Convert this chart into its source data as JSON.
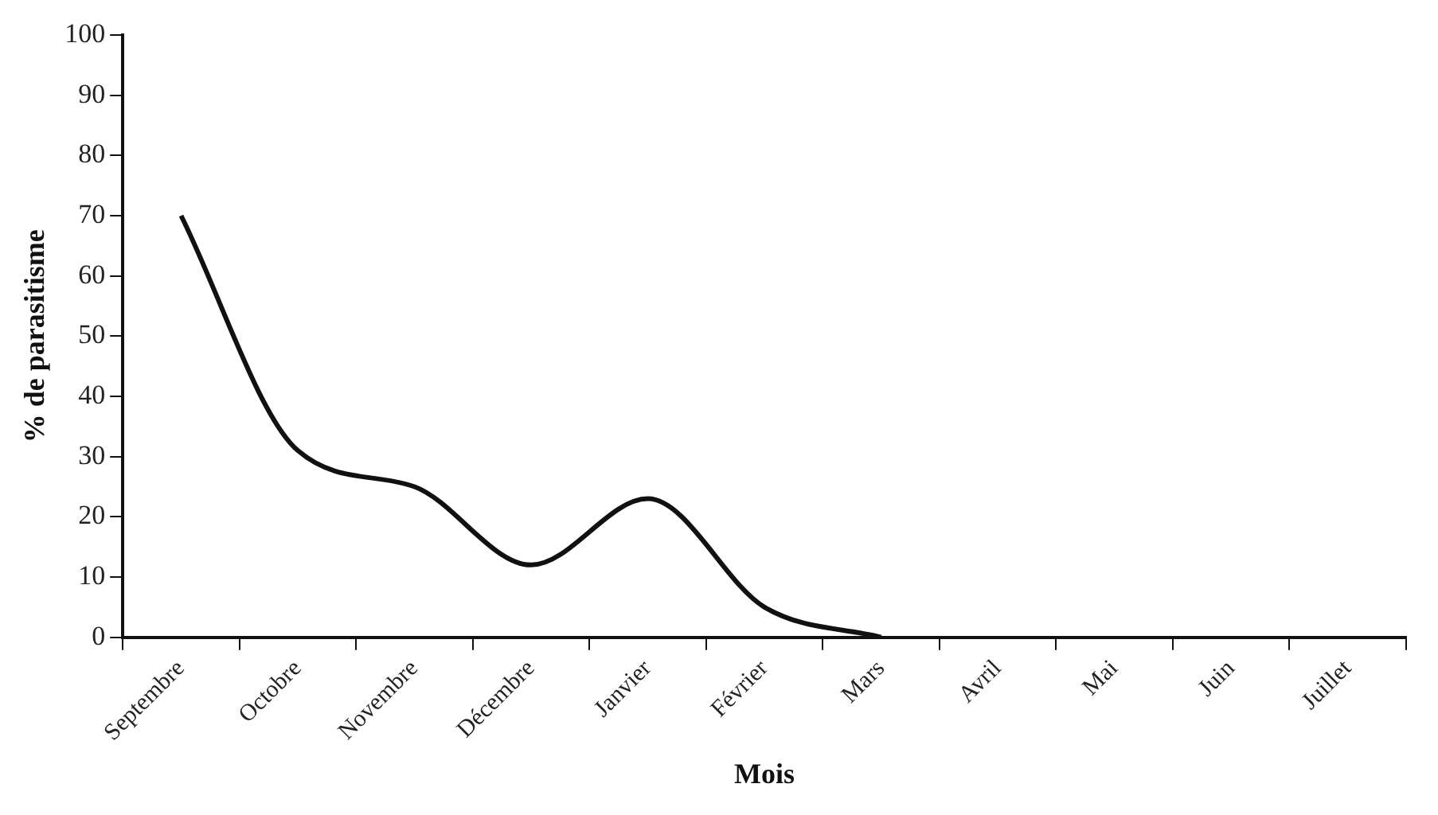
{
  "chart_data": {
    "type": "line",
    "xlabel": "Mois",
    "ylabel": "% de parasitisme",
    "categories": [
      "Septembre",
      "Octobre",
      "Novembre",
      "Décembre",
      "Janvier",
      "Février",
      "Mars",
      "Avril",
      "Mai",
      "Juin",
      "Juillet"
    ],
    "series": [
      {
        "color": "#111111",
        "values": [
          70,
          31,
          25,
          12,
          23,
          5,
          0,
          null,
          null,
          null,
          null
        ]
      }
    ],
    "ylim": [
      0,
      100
    ],
    "yticks": [
      0,
      10,
      20,
      30,
      40,
      50,
      60,
      70,
      80,
      90,
      100
    ],
    "grid": false,
    "legend": false,
    "marker": "none",
    "line_style": "solid"
  }
}
